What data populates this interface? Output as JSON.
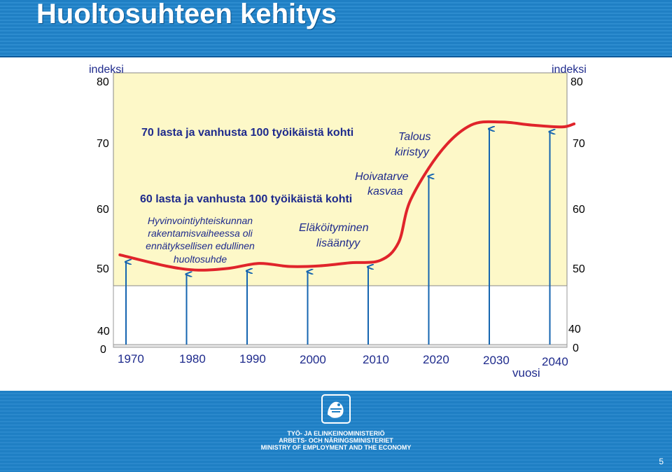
{
  "slide": {
    "title": "Huoltosuhteen kehitys",
    "page_number": "5",
    "ministry_lines": [
      "TYÖ- JA ELINKEINOMINISTERIÖ",
      "ARBETS- OCH NÄRINGSMINISTERIET",
      "MINISTRY OF EMPLOYMENT AND THE ECONOMY"
    ]
  },
  "chart_data": {
    "type": "line",
    "xlabel": "vuosi",
    "ylabel_left": "indeksi",
    "ylabel_right": "indeksi",
    "x_ticks": [
      "1970",
      "1980",
      "1990",
      "2000",
      "2010",
      "2020",
      "2030",
      "2040"
    ],
    "y_ticks": [
      "80",
      "70",
      "60",
      "50"
    ],
    "y_bottom_ticks": [
      "40",
      "0"
    ],
    "ylim": [
      40,
      80
    ],
    "x": [
      1967,
      1975,
      1980,
      1985,
      1990,
      1995,
      2000,
      2005,
      2010,
      2013,
      2015,
      2020,
      2025,
      2030,
      2035,
      2040,
      2042
    ],
    "values": [
      51.5,
      49.6,
      49.0,
      49.3,
      50.1,
      49.6,
      49.7,
      50.2,
      50.6,
      53.5,
      60.5,
      68.5,
      72.8,
      73.3,
      72.8,
      72.5,
      73.0
    ],
    "series_color": "#e0242b",
    "arrow_years": [
      1968,
      1978,
      1988,
      1998,
      2008,
      2018,
      2028,
      2038
    ],
    "annotations": {
      "line70": "70 lasta ja vanhusta 100 työikäistä kohti",
      "line60": "60 lasta ja vanhusta 100 työikäistä kohti",
      "talous_1": "Talous",
      "talous_2": "kiristyy",
      "hoivatarve_1": "Hoivatarve",
      "hoivatarve_2": "kasvaa",
      "elakoityminen_1": "Eläköityminen",
      "elakoityminen_2": "lisääntyy",
      "hyvinvointi_1": "Hyvinvointiyhteiskunnan",
      "hyvinvointi_2": "rakentamisvaiheessa oli",
      "hyvinvointi_3": "ennätyksellisen edullinen",
      "hyvinvointi_4": "huoltosuhde"
    },
    "colors": {
      "plot_background": "#fdf8c8",
      "axis_label": "#1e2a8c",
      "arrow": "#1565b0"
    }
  }
}
